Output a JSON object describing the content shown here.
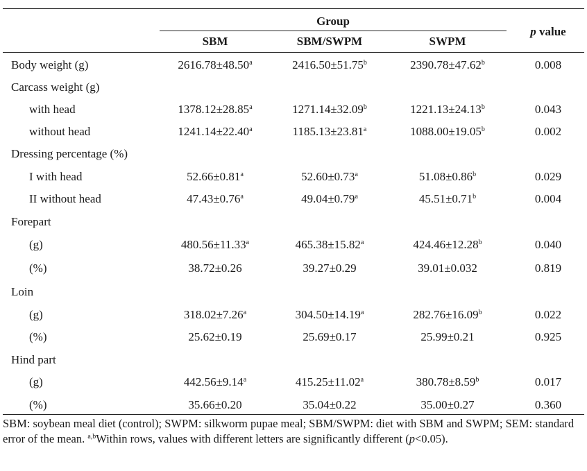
{
  "header": {
    "group": "Group",
    "p_value_p": "p",
    "p_value_rest": " value",
    "columns": [
      "SBM",
      "SBM/SWPM",
      "SWPM"
    ]
  },
  "rows": [
    {
      "label": "Body weight (g)",
      "indent": false,
      "cells": [
        {
          "v": "2616.78±48.50",
          "s": "a"
        },
        {
          "v": "2416.50±51.75",
          "s": "b"
        },
        {
          "v": "2390.78±47.62",
          "s": "b"
        }
      ],
      "p": "0.008"
    },
    {
      "label": "Carcass weight (g)",
      "indent": false,
      "cells": null,
      "p": ""
    },
    {
      "label": "with head",
      "indent": true,
      "cells": [
        {
          "v": "1378.12±28.85",
          "s": "a"
        },
        {
          "v": "1271.14±32.09",
          "s": "b"
        },
        {
          "v": "1221.13±24.13",
          "s": "b"
        }
      ],
      "p": "0.043"
    },
    {
      "label": "without head",
      "indent": true,
      "cells": [
        {
          "v": "1241.14±22.40",
          "s": "a"
        },
        {
          "v": "1185.13±23.81",
          "s": "a"
        },
        {
          "v": "1088.00±19.05",
          "s": "b"
        }
      ],
      "p": "0.002"
    },
    {
      "label": "Dressing percentage (%)",
      "indent": false,
      "cells": null,
      "p": ""
    },
    {
      "label": "I with head",
      "indent": true,
      "cells": [
        {
          "v": "52.66±0.81",
          "s": "a"
        },
        {
          "v": "52.60±0.73",
          "s": "a"
        },
        {
          "v": "51.08±0.86",
          "s": "b"
        }
      ],
      "p": "0.029"
    },
    {
      "label": "II without head",
      "indent": true,
      "cells": [
        {
          "v": "47.43±0.76",
          "s": "a"
        },
        {
          "v": "49.04±0.79",
          "s": "a"
        },
        {
          "v": "45.51±0.71",
          "s": "b"
        }
      ],
      "p": "0.004"
    },
    {
      "label": "Forepart",
      "indent": false,
      "cells": null,
      "p": ""
    },
    {
      "label": "(g)",
      "indent": true,
      "cells": [
        {
          "v": "480.56±11.33",
          "s": "a"
        },
        {
          "v": "465.38±15.82",
          "s": "a"
        },
        {
          "v": "424.46±12.28",
          "s": "b"
        }
      ],
      "p": "0.040"
    },
    {
      "label": "(%)",
      "indent": true,
      "cells": [
        {
          "v": "38.72±0.26",
          "s": ""
        },
        {
          "v": "39.27±0.29",
          "s": ""
        },
        {
          "v": "39.01±0.032",
          "s": ""
        }
      ],
      "p": "0.819"
    },
    {
      "label": "Loin",
      "indent": false,
      "cells": null,
      "p": ""
    },
    {
      "label": "(g)",
      "indent": true,
      "cells": [
        {
          "v": "318.02±7.26",
          "s": "a"
        },
        {
          "v": "304.50±14.19",
          "s": "a"
        },
        {
          "v": "282.76±16.09",
          "s": "b"
        }
      ],
      "p": "0.022"
    },
    {
      "label": "(%)",
      "indent": true,
      "cells": [
        {
          "v": "25.62±0.19",
          "s": ""
        },
        {
          "v": "25.69±0.17",
          "s": ""
        },
        {
          "v": "25.99±0.21",
          "s": ""
        }
      ],
      "p": "0.925"
    },
    {
      "label": "Hind part",
      "indent": false,
      "cells": null,
      "p": ""
    },
    {
      "label": "(g)",
      "indent": true,
      "cells": [
        {
          "v": "442.56±9.14",
          "s": "a"
        },
        {
          "v": "415.25±11.02",
          "s": "a"
        },
        {
          "v": "380.78±8.59",
          "s": "b"
        }
      ],
      "p": "0.017"
    },
    {
      "label": "(%)",
      "indent": true,
      "cells": [
        {
          "v": "35.66±0.20",
          "s": ""
        },
        {
          "v": "35.04±0.22",
          "s": ""
        },
        {
          "v": "35.00±0.27",
          "s": ""
        }
      ],
      "p": "0.360"
    }
  ],
  "footnote": {
    "part1": "SBM: soybean meal diet (control); SWPM: silkworm pupae meal; SBM/SWPM: diet with SBM and SWPM; SEM: standard error of the mean. ",
    "sup": "a,b",
    "part2": "Within rows, values with different letters are significantly different (",
    "p_italic": "p",
    "part3": "<0.05)."
  }
}
